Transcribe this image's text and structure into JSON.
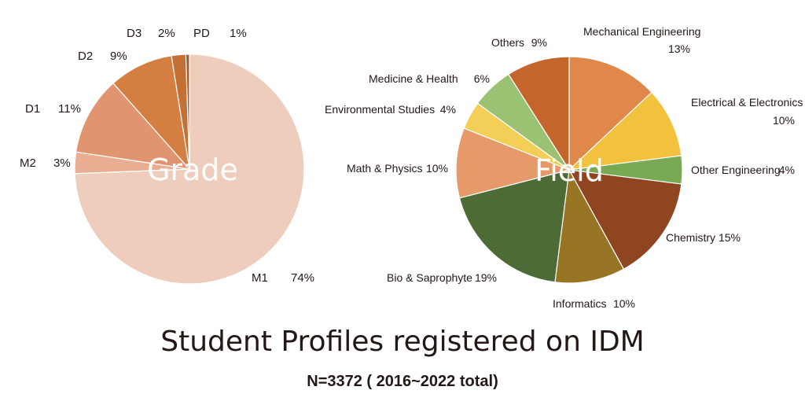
{
  "title": "Student Profiles registered on  IDM",
  "subtitle": "N=3372 ( 2016~2022 total)",
  "chart_data": [
    {
      "type": "pie",
      "center_label": "Grade",
      "slices": [
        {
          "label": "M1",
          "pct_text": "74%",
          "value": 74,
          "color": "#efcdbd"
        },
        {
          "label": "M2",
          "pct_text": "3%",
          "value": 3,
          "color": "#e9ad92"
        },
        {
          "label": "D1",
          "pct_text": "11%",
          "value": 11,
          "color": "#e19470"
        },
        {
          "label": "D2",
          "pct_text": "9%",
          "value": 9,
          "color": "#d47e42"
        },
        {
          "label": "D3",
          "pct_text": "2%",
          "value": 2,
          "color": "#c46f34"
        },
        {
          "label": "PD",
          "pct_text": "1%",
          "value": 0.5,
          "color": "#a85a2a"
        }
      ]
    },
    {
      "type": "pie",
      "center_label": "Field",
      "slices": [
        {
          "label": "Mechanical Engineering",
          "pct_text": "13%",
          "value": 13,
          "color": "#e0874a"
        },
        {
          "label": "Electrical & Electronics",
          "pct_text": "10%",
          "value": 10,
          "color": "#f2c23e"
        },
        {
          "label": "Other Engineering",
          "pct_text": "4%",
          "value": 4,
          "color": "#78aa56"
        },
        {
          "label": "Chemistry",
          "pct_text": "15%",
          "value": 15,
          "color": "#8e4520"
        },
        {
          "label": "Informatics",
          "pct_text": "10%",
          "value": 10,
          "color": "#977524"
        },
        {
          "label": "Bio & Saprophyte",
          "pct_text": "19%",
          "value": 19,
          "color": "#4d6b35"
        },
        {
          "label": "Math & Physics",
          "pct_text": "10%",
          "value": 10,
          "color": "#e69a6a"
        },
        {
          "label": "Environmental Studies",
          "pct_text": "4%",
          "value": 4,
          "color": "#f4cf58"
        },
        {
          "label": "Medicine & Health",
          "pct_text": "6%",
          "value": 6,
          "color": "#9bc173"
        },
        {
          "label": "Others",
          "pct_text": "9%",
          "value": 9,
          "color": "#c4652b"
        }
      ]
    }
  ]
}
